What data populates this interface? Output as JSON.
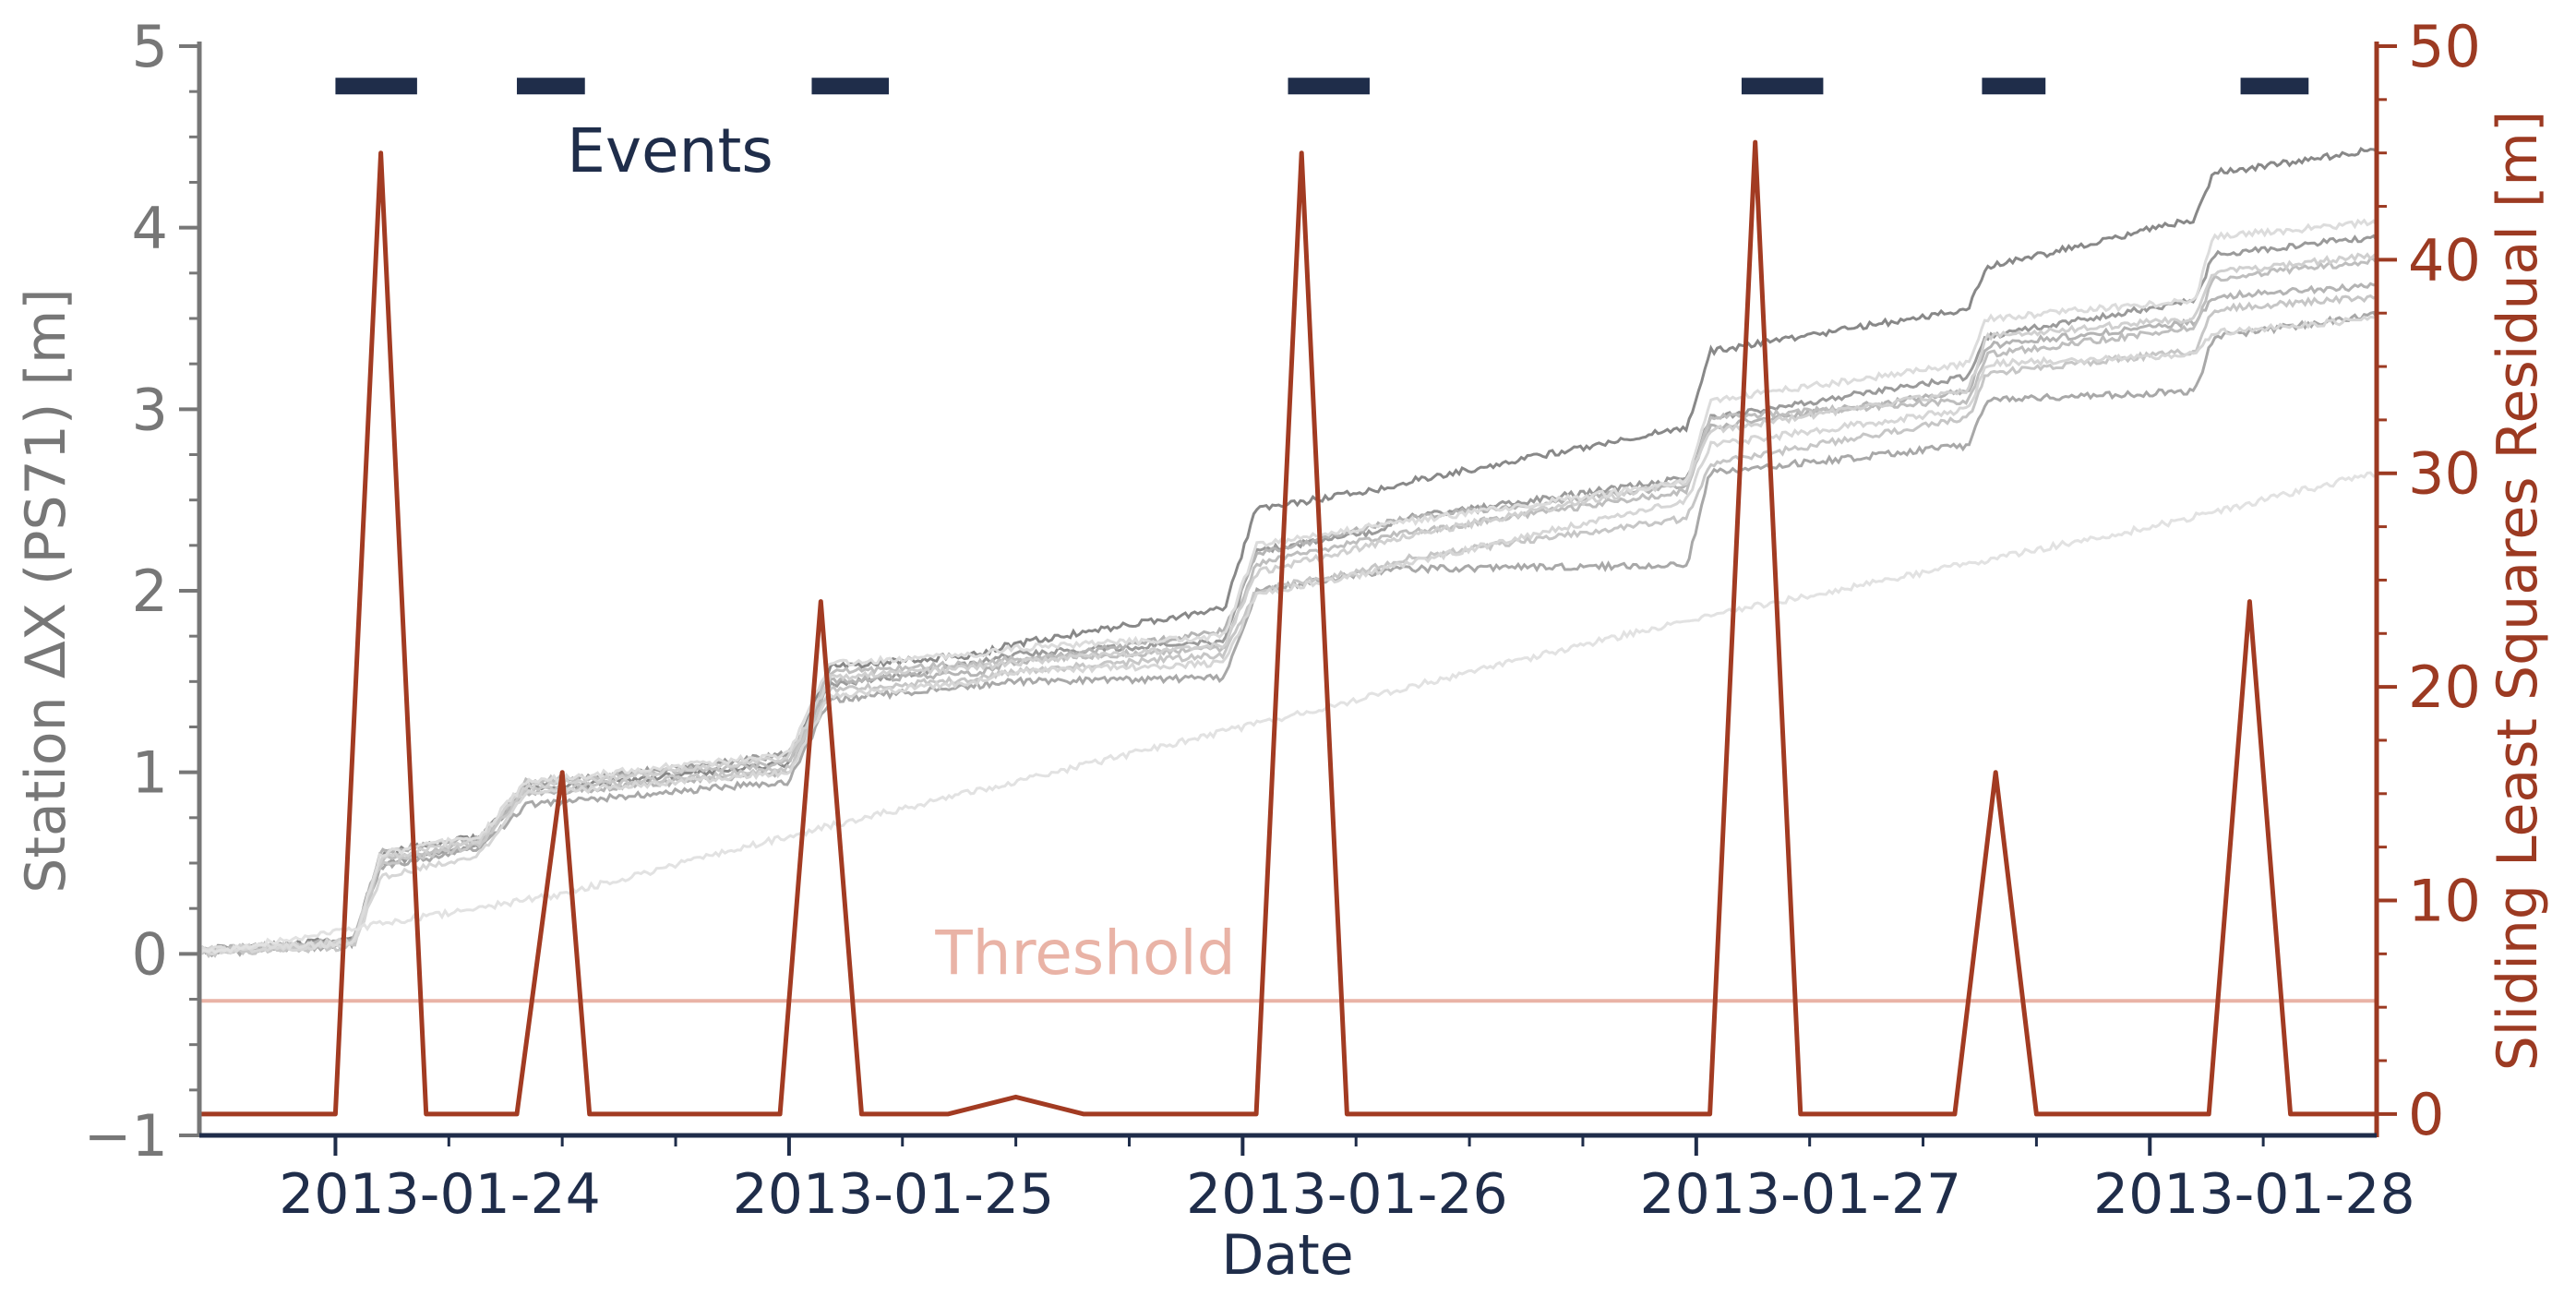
{
  "colors": {
    "left_axis": "#777777",
    "right_axis": "#9c3a22",
    "bottom_axis": "#1f2d4a",
    "events": "#1f2d4a",
    "threshold": "#e9b3a6",
    "residual": "#a23b22",
    "station_shades": [
      "#888888",
      "#9a9a9a",
      "#a8a8a8",
      "#b4b4b4",
      "#bebebe",
      "#c6c6c6",
      "#d0d0d0",
      "#d6d6d6",
      "#dcdcdc",
      "#e2e2e2"
    ]
  },
  "chart_data": {
    "type": "line",
    "xlabel": "Date",
    "ylabel": "Station ΔX (PS71) [m]",
    "y2label": "Sliding Least Squares Residual [m]",
    "x_tick_labels": [
      "2013-01-24",
      "2013-01-25",
      "2013-01-26",
      "2013-01-27",
      "2013-01-28"
    ],
    "x_ticks": [
      24.0,
      25.0,
      26.0,
      27.0,
      28.0
    ],
    "x_minor_ticks": [
      24.25,
      24.5,
      24.75,
      25.25,
      25.5,
      25.75,
      26.25,
      26.5,
      26.75,
      27.25,
      27.5,
      27.75,
      28.25
    ],
    "xlim": [
      23.7,
      28.5
    ],
    "ylim": [
      -1,
      5
    ],
    "y_ticks": [
      -1,
      0,
      1,
      2,
      3,
      4,
      5
    ],
    "y_tick_labels": [
      "−1",
      "0",
      "1",
      "2",
      "3",
      "4",
      "5"
    ],
    "y_minor_step": 0.25,
    "y2lim": [
      -1,
      50
    ],
    "y2_ticks": [
      0,
      10,
      20,
      30,
      40,
      50
    ],
    "y2_tick_labels": [
      "0",
      "10",
      "20",
      "30",
      "40",
      "50"
    ],
    "y2_minor_step": 2.5,
    "events": {
      "label": "Events",
      "y": 4.78,
      "intervals": [
        [
          24.0,
          24.18
        ],
        [
          24.4,
          24.55
        ],
        [
          25.05,
          25.22
        ],
        [
          26.1,
          26.28
        ],
        [
          27.1,
          27.28
        ],
        [
          27.63,
          27.77
        ],
        [
          28.2,
          28.35
        ]
      ]
    },
    "threshold": {
      "label": "Threshold",
      "y2": 5.3
    },
    "residual": {
      "name": "Sliding Least Squares Residual",
      "x": [
        23.7,
        24.0,
        24.1,
        24.2,
        24.4,
        24.5,
        24.56,
        24.98,
        25.07,
        25.16,
        25.35,
        25.5,
        25.65,
        26.03,
        26.13,
        26.23,
        27.03,
        27.13,
        27.23,
        27.57,
        27.66,
        27.75,
        28.13,
        28.22,
        28.31,
        28.5
      ],
      "y2": [
        0,
        0,
        45,
        0,
        0,
        16,
        0,
        0,
        24,
        0,
        0,
        0.8,
        0,
        0,
        45,
        0,
        0,
        45.5,
        0,
        0,
        16,
        0,
        0,
        24,
        0,
        0
      ]
    },
    "station_series": [
      {
        "x": [
          23.7,
          24.04,
          24.1,
          24.32,
          24.42,
          25.0,
          25.09,
          25.42,
          25.48,
          25.96,
          26.03,
          26.28,
          26.36,
          26.98,
          27.03,
          27.6,
          27.64,
          28.1,
          28.14,
          28.5
        ],
        "y": [
          0.02,
          0.08,
          0.55,
          0.65,
          0.9,
          1.05,
          1.58,
          1.65,
          1.7,
          1.9,
          2.45,
          2.55,
          2.6,
          2.9,
          3.32,
          3.55,
          3.78,
          4.05,
          4.3,
          4.43
        ]
      },
      {
        "x": [
          23.7,
          24.04,
          24.1,
          24.32,
          24.42,
          25.0,
          25.09,
          25.42,
          25.48,
          25.96,
          26.03,
          26.28,
          26.36,
          26.98,
          27.03,
          27.6,
          27.64,
          28.1,
          28.14,
          28.5
        ],
        "y": [
          0.03,
          0.06,
          0.5,
          0.6,
          0.93,
          1.1,
          1.48,
          1.6,
          1.65,
          1.72,
          2.22,
          2.32,
          2.4,
          2.62,
          2.95,
          3.18,
          3.4,
          3.6,
          3.85,
          3.95
        ]
      },
      {
        "x": [
          23.7,
          24.04,
          24.1,
          24.32,
          24.42,
          25.0,
          25.09,
          25.42,
          25.48,
          25.96,
          26.03,
          26.28,
          26.36,
          26.98,
          27.03,
          27.6,
          27.64,
          28.1,
          28.14,
          28.5
        ],
        "y": [
          0.0,
          0.05,
          0.48,
          0.58,
          0.82,
          0.95,
          1.4,
          1.48,
          1.5,
          1.52,
          2.0,
          2.1,
          2.12,
          2.14,
          2.65,
          2.8,
          3.05,
          3.1,
          3.4,
          3.52
        ]
      },
      {
        "x": [
          23.7,
          24.04,
          24.1,
          24.32,
          24.42,
          25.0,
          25.09,
          25.42,
          25.48,
          25.96,
          26.03,
          26.28,
          26.36,
          26.98,
          27.03,
          27.6,
          27.64,
          28.1,
          28.14,
          28.5
        ],
        "y": [
          0.02,
          0.07,
          0.56,
          0.64,
          0.88,
          1.0,
          1.5,
          1.55,
          1.6,
          1.78,
          2.2,
          2.35,
          2.4,
          2.58,
          2.9,
          3.1,
          3.35,
          3.48,
          3.62,
          3.68
        ]
      },
      {
        "x": [
          23.7,
          24.04,
          24.1,
          24.32,
          24.42,
          25.0,
          25.09,
          25.42,
          25.48,
          25.96,
          26.03,
          26.28,
          26.36,
          26.98,
          27.03,
          27.6,
          27.64,
          28.1,
          28.14,
          28.5
        ],
        "y": [
          0.01,
          0.06,
          0.52,
          0.62,
          0.95,
          1.05,
          1.55,
          1.6,
          1.62,
          1.68,
          2.15,
          2.28,
          2.32,
          2.55,
          2.95,
          3.05,
          3.3,
          3.45,
          3.72,
          3.82
        ]
      },
      {
        "x": [
          23.7,
          24.04,
          24.1,
          24.32,
          24.42,
          25.0,
          25.09,
          25.42,
          25.48,
          25.96,
          26.03,
          26.28,
          26.36,
          26.98,
          27.03,
          27.6,
          27.64,
          28.1,
          28.14,
          28.5
        ],
        "y": [
          0.0,
          0.04,
          0.5,
          0.6,
          0.9,
          1.02,
          1.45,
          1.52,
          1.55,
          1.65,
          2.0,
          2.12,
          2.18,
          2.4,
          2.7,
          2.95,
          3.2,
          3.32,
          3.55,
          3.62
        ]
      },
      {
        "x": [
          23.7,
          24.04,
          24.1,
          24.32,
          24.42,
          25.0,
          25.09,
          25.42,
          25.48,
          25.96,
          26.03,
          26.28,
          26.36,
          26.98,
          27.03,
          27.6,
          27.64,
          28.1,
          28.14,
          28.5
        ],
        "y": [
          0.02,
          0.07,
          0.53,
          0.63,
          0.92,
          1.08,
          1.52,
          1.58,
          1.6,
          1.7,
          2.1,
          2.25,
          2.3,
          2.6,
          2.88,
          3.1,
          3.4,
          3.5,
          3.75,
          3.85
        ]
      },
      {
        "x": [
          23.7,
          24.04,
          24.1,
          24.32,
          24.42,
          25.0,
          25.09,
          25.42,
          25.48,
          25.96,
          26.03,
          26.28,
          26.36,
          26.98,
          27.03,
          27.6,
          27.64,
          28.1,
          28.14,
          28.5
        ],
        "y": [
          0.01,
          0.05,
          0.42,
          0.55,
          0.88,
          1.0,
          1.42,
          1.5,
          1.55,
          1.6,
          1.98,
          2.1,
          2.15,
          2.5,
          2.8,
          3.0,
          3.25,
          3.3,
          3.42,
          3.5
        ]
      },
      {
        "x": [
          23.7,
          24.04,
          24.1,
          24.32,
          24.42,
          25.0,
          25.09,
          25.42,
          25.48,
          25.96,
          26.03,
          26.28,
          26.36,
          26.98,
          27.03,
          27.6,
          27.64,
          28.1,
          28.14,
          28.5
        ],
        "y": [
          0.02,
          0.06,
          0.55,
          0.65,
          0.95,
          1.1,
          1.6,
          1.65,
          1.68,
          1.75,
          2.25,
          2.35,
          2.38,
          2.6,
          3.05,
          3.25,
          3.5,
          3.6,
          3.95,
          4.03
        ]
      },
      {
        "x": [
          23.7,
          24.5,
          25.0,
          25.5,
          26.0,
          26.5,
          27.0,
          27.5,
          28.0,
          28.5
        ],
        "y": [
          0.0,
          0.33,
          0.65,
          0.95,
          1.25,
          1.55,
          1.85,
          2.1,
          2.35,
          2.65
        ]
      }
    ]
  }
}
